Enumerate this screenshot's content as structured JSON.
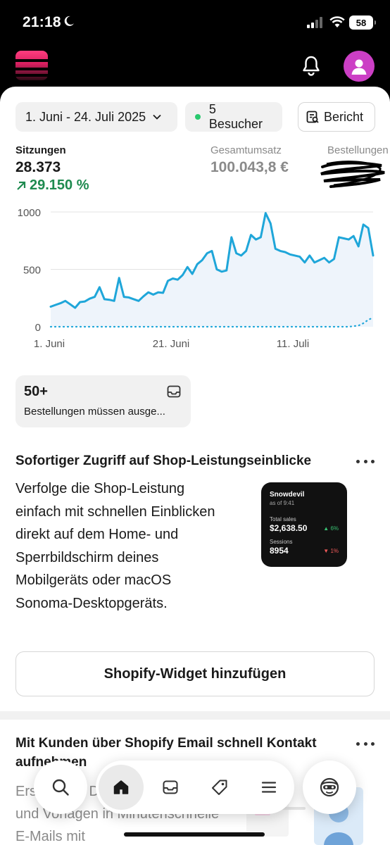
{
  "status_bar": {
    "time": "21:18",
    "battery": "58"
  },
  "filters": {
    "date_range": "1. Juni - 24. Juli 2025",
    "visitors": "5 Besucher",
    "report": "Bericht"
  },
  "metrics": {
    "sessions": {
      "label": "Sitzungen",
      "value": "28.373",
      "change": "29.150 %"
    },
    "revenue": {
      "label": "Gesamtumsatz",
      "value": "100.043,8 €"
    },
    "orders": {
      "label": "Bestellungen"
    }
  },
  "chart_data": {
    "type": "line",
    "ylim": [
      0,
      1000
    ],
    "y_ticks": [
      "1000",
      "500",
      "0"
    ],
    "x_tick_labels": [
      "1. Juni",
      "21. Juni",
      "11. Juli"
    ],
    "series": [
      {
        "values": [
          175,
          190,
          205,
          225,
          195,
          165,
          215,
          220,
          245,
          260,
          345,
          240,
          235,
          225,
          425,
          260,
          255,
          240,
          225,
          265,
          300,
          280,
          300,
          295,
          400,
          420,
          410,
          450,
          520,
          460,
          545,
          580,
          640,
          660,
          500,
          480,
          490,
          780,
          640,
          620,
          660,
          800,
          760,
          780,
          990,
          900,
          680,
          660,
          650,
          630,
          620,
          610,
          560,
          620,
          560,
          580,
          600,
          560,
          590,
          780,
          770,
          760,
          790,
          700,
          890,
          860,
          620
        ]
      },
      {
        "values": [
          0,
          0,
          0,
          0,
          0,
          0,
          0,
          0,
          0,
          0,
          0,
          0,
          0,
          0,
          0,
          0,
          0,
          0,
          0,
          0,
          0,
          0,
          0,
          0,
          0,
          0,
          0,
          0,
          0,
          0,
          0,
          0,
          0,
          0,
          0,
          0,
          0,
          0,
          0,
          0,
          0,
          0,
          0,
          0,
          0,
          0,
          0,
          0,
          0,
          0,
          0,
          0,
          0,
          0,
          0,
          0,
          0,
          0,
          0,
          0,
          0,
          0,
          5,
          10,
          30,
          60,
          80
        ]
      }
    ]
  },
  "todo": {
    "count": "50+",
    "text": "Bestellungen müssen ausge..."
  },
  "promo": {
    "title": "Sofortiger Zugriff auf Shop-Leistungseinblicke",
    "body": "Verfolge die Shop-Leistung einfach mit schnellen Einblicken direkt auf dem Home- und Sperrbildschirm deines Mobilgeräts oder macOS Sonoma-Desktopgeräts.",
    "button": "Shopify-Widget hinzufügen",
    "widget": {
      "name": "Snowdevil",
      "as_of": "as of 9:41",
      "sales_label": "Total sales",
      "sales_value": "$2,638.50",
      "sales_change": "▲ 6%",
      "sessions_label": "Sessions",
      "sessions_value": "8954",
      "sessions_change": "▼ 1%"
    }
  },
  "email": {
    "title": "Mit Kunden über Shopify Email schnell Kontakt aufnehmen",
    "body": "Erstelle mit Drag-and-Drop-Editor und Vorlagen in Minutenschnelle E-Mails mit"
  },
  "colors": {
    "accent_green": "#1e8a4f",
    "chart_line": "#1fa6d9",
    "avatar": "#cc3fc5"
  }
}
